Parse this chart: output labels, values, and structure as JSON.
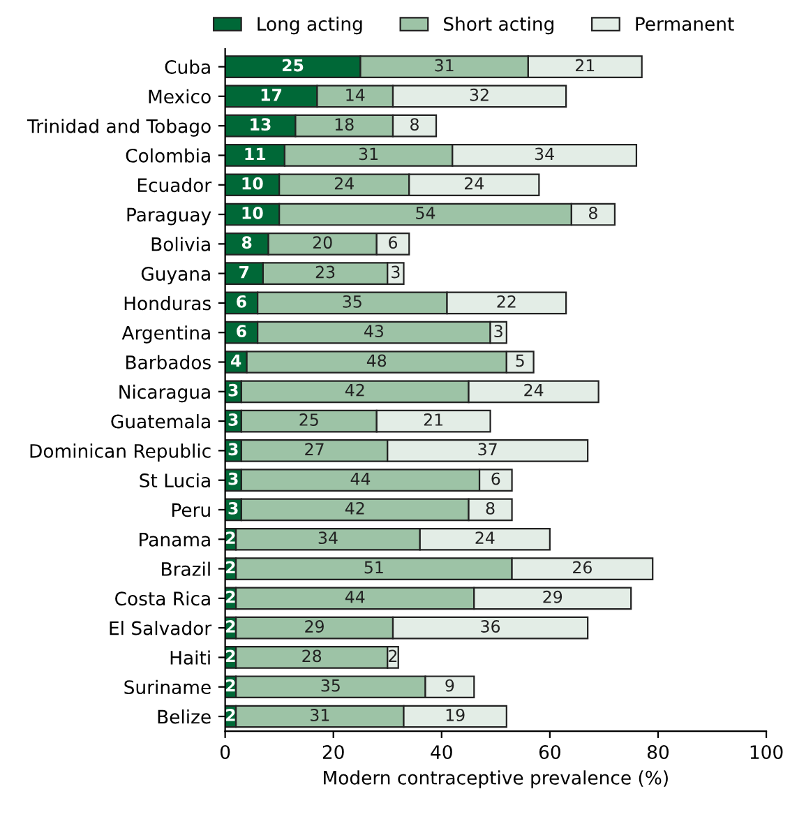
{
  "chart_data": {
    "type": "bar",
    "orientation": "horizontal",
    "stacked": true,
    "data_labels": true,
    "legend": "top",
    "grid": false,
    "xlabel": "Modern contraceptive prevalence (%)",
    "categories": [
      "Cuba",
      "Mexico",
      "Trinidad and Tobago",
      "Colombia",
      "Ecuador",
      "Paraguay",
      "Bolivia",
      "Guyana",
      "Honduras",
      "Argentina",
      "Barbados",
      "Nicaragua",
      "Guatemala",
      "Dominican Republic",
      "St Lucia",
      "Peru",
      "Panama",
      "Brazil",
      "Costa Rica",
      "El Salvador",
      "Haiti",
      "Suriname",
      "Belize"
    ],
    "xlim": [
      0,
      100
    ],
    "xticks": [
      0,
      20,
      40,
      60,
      80,
      100
    ],
    "series": [
      {
        "name": "Long acting",
        "color": "#006837",
        "values": [
          25,
          17,
          13,
          11,
          10,
          10,
          8,
          7,
          6,
          6,
          4,
          3,
          3,
          3,
          3,
          3,
          2,
          2,
          2,
          2,
          2,
          2,
          2
        ]
      },
      {
        "name": "Short acting",
        "color": "#9dc3a6",
        "values": [
          31,
          14,
          18,
          31,
          24,
          54,
          20,
          23,
          35,
          43,
          48,
          42,
          25,
          27,
          44,
          42,
          34,
          51,
          44,
          29,
          28,
          35,
          31
        ]
      },
      {
        "name": "Permanent",
        "color": "#e3ede6",
        "values": [
          21,
          32,
          8,
          34,
          24,
          8,
          6,
          3,
          22,
          3,
          5,
          24,
          21,
          37,
          6,
          8,
          24,
          26,
          29,
          36,
          2,
          9,
          19
        ]
      }
    ]
  }
}
